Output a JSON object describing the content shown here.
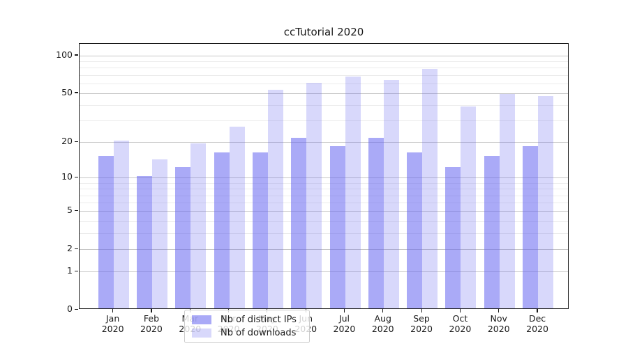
{
  "figure": {
    "title": "ccTutorial 2020"
  },
  "chart_data": {
    "type": "bar",
    "title": "ccTutorial 2020",
    "categories": [
      "Jan 2020",
      "Feb 2020",
      "Mar 2020",
      "Apr 2020",
      "May 2020",
      "Jun 2020",
      "Jul 2020",
      "Aug 2020",
      "Sep 2020",
      "Oct 2020",
      "Nov 2020",
      "Dec 2020"
    ],
    "series": [
      {
        "name": "Nb of distinct IPs",
        "color": "rgba(100,100,240,0.55)",
        "values": [
          15,
          10,
          12,
          16,
          16,
          21,
          18,
          21,
          16,
          12,
          15,
          18
        ]
      },
      {
        "name": "Nb of downloads",
        "color": "rgba(100,100,240,0.25)",
        "values": [
          20,
          14,
          19,
          26,
          52,
          59,
          66,
          62,
          76,
          38,
          48,
          46
        ]
      }
    ],
    "xlabel": "",
    "ylabel": "",
    "yscale": "log1p",
    "ylim": [
      0,
      124
    ],
    "y_major_ticks": [
      100,
      50,
      20,
      10,
      5,
      2,
      1,
      0
    ],
    "y_minor_gridlines": [
      90,
      80,
      70,
      60,
      40,
      30,
      9,
      8,
      7,
      6,
      4,
      3
    ],
    "grid": true,
    "legend_position": "inside-bottom-center"
  },
  "colors": {
    "axis": "#1a1a1a",
    "grid_major": "#c6c6c6",
    "grid_minor": "#ececec",
    "legend_border": "#cccccc",
    "bar_dark": "rgba(100,100,240,0.55)",
    "bar_light": "rgba(100,100,240,0.25)"
  }
}
